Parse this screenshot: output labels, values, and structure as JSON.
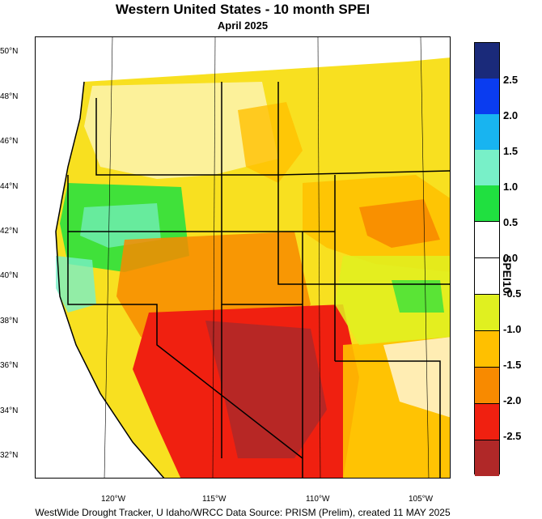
{
  "title": "Western United States - 10 month SPEI",
  "subtitle": "April 2025",
  "footer": "WestWide Drought Tracker, U Idaho/WRCC Data Source: PRISM (Prelim), created 11 MAY 2025",
  "lat_labels": [
    "50°N",
    "48°N",
    "46°N",
    "44°N",
    "42°N",
    "40°N",
    "38°N",
    "36°N",
    "34°N",
    "32°N"
  ],
  "lon_labels": [
    "120°W",
    "115°W",
    "110°W",
    "105°W"
  ],
  "colorbar": {
    "title": "SPEI10",
    "labels": [
      "2.5",
      "2.0",
      "1.5",
      "1.0",
      "0.5",
      "0.0",
      "-0.5",
      "-1.0",
      "-1.5",
      "-2.0",
      "-2.5"
    ],
    "colors": [
      "#1a2a7a",
      "#0a3cf0",
      "#18b4f0",
      "#78f0c8",
      "#20e040",
      "#ffffff",
      "#ffffff",
      "#e0f020",
      "#f8e020",
      "#ffc000",
      "#f88a00",
      "#f02010",
      "#b02828"
    ]
  },
  "regions": {
    "dry_core": "southwest",
    "wet_pocket": "northern california / oregon"
  }
}
